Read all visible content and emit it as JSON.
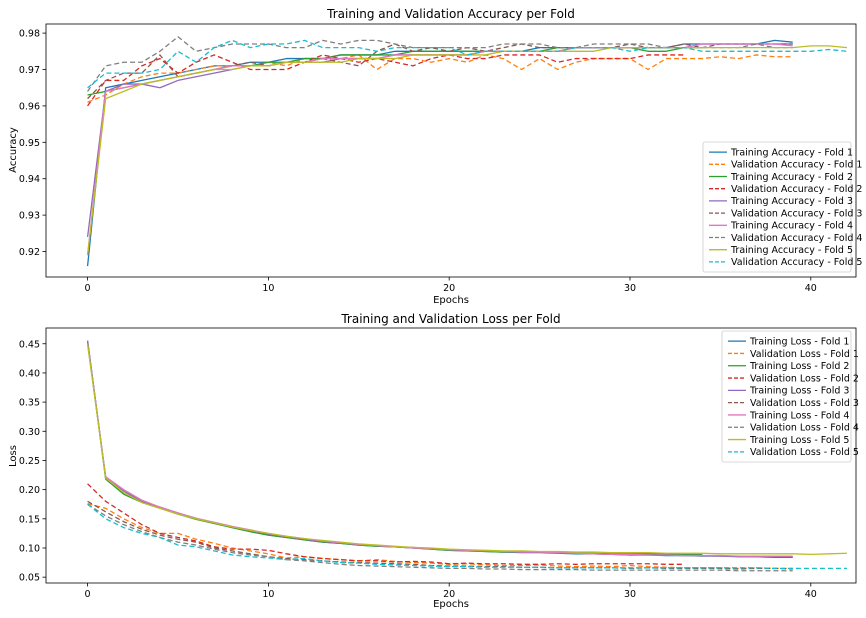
{
  "chart_data": [
    {
      "type": "line",
      "title": "Training and Validation Accuracy per Fold",
      "xlabel": "Epochs",
      "ylabel": "Accuracy",
      "xlim": [
        -2.3,
        42.5
      ],
      "ylim": [
        0.913,
        0.9825
      ],
      "xticks": [
        0,
        10,
        20,
        30,
        40
      ],
      "yticks": [
        0.92,
        0.93,
        0.94,
        0.95,
        0.96,
        0.97,
        0.98
      ],
      "ytick_decimals": 2,
      "grid": false,
      "legend_position": "lower-right",
      "series": [
        {
          "name": "Training Accuracy - Fold 1",
          "color": "#1f77b4",
          "dash": "solid",
          "values": [
            0.916,
            0.965,
            0.966,
            0.967,
            0.968,
            0.969,
            0.97,
            0.971,
            0.971,
            0.972,
            0.972,
            0.973,
            0.973,
            0.973,
            0.974,
            0.974,
            0.974,
            0.975,
            0.975,
            0.975,
            0.975,
            0.975,
            0.975,
            0.975,
            0.975,
            0.976,
            0.976,
            0.976,
            0.976,
            0.976,
            0.976,
            0.976,
            0.976,
            0.977,
            0.977,
            0.977,
            0.977,
            0.977,
            0.978,
            0.9775
          ]
        },
        {
          "name": "Validation Accuracy - Fold 1",
          "color": "#ff7f0e",
          "dash": "dashed",
          "values": [
            0.961,
            0.963,
            0.966,
            0.968,
            0.969,
            0.969,
            0.97,
            0.971,
            0.971,
            0.971,
            0.972,
            0.971,
            0.973,
            0.973,
            0.973,
            0.974,
            0.97,
            0.973,
            0.973,
            0.972,
            0.973,
            0.972,
            0.974,
            0.973,
            0.97,
            0.973,
            0.97,
            0.972,
            0.973,
            0.973,
            0.973,
            0.97,
            0.973,
            0.973,
            0.973,
            0.9735,
            0.973,
            0.974,
            0.9735,
            0.9735
          ]
        },
        {
          "name": "Training Accuracy - Fold 2",
          "color": "#2ca02c",
          "dash": "solid",
          "values": [
            0.963,
            0.964,
            0.965,
            0.966,
            0.967,
            0.968,
            0.969,
            0.97,
            0.971,
            0.971,
            0.972,
            0.972,
            0.973,
            0.973,
            0.974,
            0.974,
            0.974,
            0.974,
            0.975,
            0.975,
            0.975,
            0.975,
            0.975,
            0.975,
            0.975,
            0.975,
            0.976,
            0.976,
            0.976,
            0.976,
            0.976,
            0.975,
            0.975,
            0.976,
            0.976
          ]
        },
        {
          "name": "Validation Accuracy - Fold 2",
          "color": "#d62728",
          "dash": "dashed",
          "values": [
            0.96,
            0.967,
            0.967,
            0.971,
            0.973,
            0.969,
            0.972,
            0.974,
            0.972,
            0.97,
            0.97,
            0.97,
            0.972,
            0.974,
            0.973,
            0.972,
            0.973,
            0.972,
            0.971,
            0.973,
            0.974,
            0.973,
            0.973,
            0.974,
            0.974,
            0.974,
            0.972,
            0.973,
            0.973,
            0.973,
            0.973,
            0.974,
            0.974,
            0.974
          ]
        },
        {
          "name": "Training Accuracy - Fold 3",
          "color": "#9467bd",
          "dash": "solid",
          "values": [
            0.924,
            0.964,
            0.966,
            0.966,
            0.965,
            0.967,
            0.968,
            0.969,
            0.97,
            0.971,
            0.971,
            0.972,
            0.972,
            0.972,
            0.973,
            0.973,
            0.973,
            0.974,
            0.974,
            0.974,
            0.974,
            0.974,
            0.975,
            0.975,
            0.975,
            0.975,
            0.975,
            0.976,
            0.976,
            0.976,
            0.976,
            0.976,
            0.976,
            0.976,
            0.977,
            0.977,
            0.977,
            0.977,
            0.977,
            0.977
          ]
        },
        {
          "name": "Validation Accuracy - Fold 3",
          "color": "#8c564b",
          "dash": "dashed",
          "values": [
            0.962,
            0.967,
            0.969,
            0.969,
            0.974,
            0.968,
            0.969,
            0.97,
            0.971,
            0.972,
            0.971,
            0.972,
            0.972,
            0.973,
            0.972,
            0.971,
            0.975,
            0.977,
            0.975,
            0.976,
            0.975,
            0.976,
            0.975,
            0.976,
            0.977,
            0.976,
            0.976,
            0.976,
            0.976,
            0.976,
            0.977,
            0.976,
            0.976,
            0.977,
            0.976,
            0.977,
            0.977,
            0.977,
            0.977,
            0.977
          ]
        },
        {
          "name": "Training Accuracy - Fold 4",
          "color": "#e377c2",
          "dash": "solid",
          "values": [
            0.919,
            0.964,
            0.965,
            0.966,
            0.967,
            0.968,
            0.969,
            0.97,
            0.971,
            0.971,
            0.971,
            0.972,
            0.972,
            0.973,
            0.973,
            0.973,
            0.973,
            0.974,
            0.974,
            0.974,
            0.974,
            0.974,
            0.975,
            0.975,
            0.975,
            0.975,
            0.975,
            0.976,
            0.976,
            0.976,
            0.976,
            0.976,
            0.976,
            0.976,
            0.977,
            0.977,
            0.977,
            0.977,
            0.977,
            0.9765
          ]
        },
        {
          "name": "Validation Accuracy - Fold 4",
          "color": "#7f7f7f",
          "dash": "dashed",
          "values": [
            0.964,
            0.971,
            0.972,
            0.972,
            0.975,
            0.979,
            0.975,
            0.976,
            0.977,
            0.977,
            0.977,
            0.976,
            0.976,
            0.978,
            0.977,
            0.978,
            0.978,
            0.977,
            0.976,
            0.976,
            0.976,
            0.976,
            0.976,
            0.977,
            0.977,
            0.977,
            0.976,
            0.976,
            0.977,
            0.977,
            0.977,
            0.977,
            0.976,
            0.976,
            0.976,
            0.976,
            0.976,
            0.977,
            0.976,
            0.976
          ]
        },
        {
          "name": "Training Accuracy - Fold 5",
          "color": "#bcbd22",
          "dash": "solid",
          "values": [
            0.919,
            0.962,
            0.964,
            0.966,
            0.967,
            0.968,
            0.969,
            0.97,
            0.97,
            0.971,
            0.971,
            0.972,
            0.972,
            0.972,
            0.972,
            0.973,
            0.973,
            0.973,
            0.974,
            0.974,
            0.974,
            0.974,
            0.974,
            0.975,
            0.975,
            0.975,
            0.975,
            0.975,
            0.975,
            0.976,
            0.976,
            0.976,
            0.976,
            0.976,
            0.976,
            0.976,
            0.976,
            0.976,
            0.976,
            0.976,
            0.9765,
            0.9765,
            0.976
          ]
        },
        {
          "name": "Validation Accuracy - Fold 5",
          "color": "#17becf",
          "dash": "dashed",
          "values": [
            0.965,
            0.969,
            0.969,
            0.969,
            0.97,
            0.975,
            0.972,
            0.976,
            0.978,
            0.976,
            0.977,
            0.977,
            0.978,
            0.976,
            0.976,
            0.976,
            0.975,
            0.976,
            0.976,
            0.976,
            0.976,
            0.974,
            0.975,
            0.975,
            0.975,
            0.975,
            0.975,
            0.976,
            0.976,
            0.976,
            0.975,
            0.976,
            0.976,
            0.976,
            0.975,
            0.975,
            0.975,
            0.975,
            0.975,
            0.975,
            0.975,
            0.9755,
            0.975
          ]
        }
      ]
    },
    {
      "type": "line",
      "title": "Training and Validation Loss per Fold",
      "xlabel": "Epochs",
      "ylabel": "Loss",
      "xlim": [
        -2.3,
        42.5
      ],
      "ylim": [
        0.04,
        0.477
      ],
      "xticks": [
        0,
        10,
        20,
        30,
        40
      ],
      "yticks": [
        0.05,
        0.1,
        0.15,
        0.2,
        0.25,
        0.3,
        0.35,
        0.4,
        0.45
      ],
      "ytick_decimals": 2,
      "grid": false,
      "legend_position": "upper-right",
      "series": [
        {
          "name": "Training Loss - Fold 1",
          "color": "#1f77b4",
          "dash": "solid",
          "values": [
            0.455,
            0.22,
            0.195,
            0.18,
            0.17,
            0.16,
            0.15,
            0.143,
            0.135,
            0.128,
            0.122,
            0.118,
            0.114,
            0.11,
            0.108,
            0.105,
            0.103,
            0.102,
            0.1,
            0.098,
            0.096,
            0.095,
            0.094,
            0.093,
            0.092,
            0.092,
            0.091,
            0.09,
            0.09,
            0.089,
            0.088,
            0.088,
            0.087,
            0.087,
            0.086,
            0.086,
            0.085,
            0.085,
            0.084,
            0.084
          ]
        },
        {
          "name": "Validation Loss - Fold 1",
          "color": "#ff7f0e",
          "dash": "dashed",
          "values": [
            0.176,
            0.168,
            0.15,
            0.135,
            0.125,
            0.125,
            0.115,
            0.108,
            0.1,
            0.095,
            0.09,
            0.083,
            0.085,
            0.082,
            0.08,
            0.078,
            0.08,
            0.077,
            0.075,
            0.074,
            0.072,
            0.073,
            0.071,
            0.07,
            0.07,
            0.071,
            0.069,
            0.068,
            0.069,
            0.068,
            0.07,
            0.068,
            0.067,
            0.066,
            0.066,
            0.066,
            0.065,
            0.066,
            0.065,
            0.065
          ]
        },
        {
          "name": "Training Loss - Fold 2",
          "color": "#2ca02c",
          "dash": "solid",
          "values": [
            0.455,
            0.218,
            0.192,
            0.178,
            0.168,
            0.158,
            0.149,
            0.142,
            0.135,
            0.128,
            0.122,
            0.118,
            0.114,
            0.11,
            0.108,
            0.105,
            0.103,
            0.102,
            0.1,
            0.098,
            0.096,
            0.095,
            0.094,
            0.093,
            0.093,
            0.093,
            0.092,
            0.091,
            0.091,
            0.09,
            0.09,
            0.09,
            0.09,
            0.089,
            0.089
          ]
        },
        {
          "name": "Validation Loss - Fold 2",
          "color": "#d62728",
          "dash": "dashed",
          "values": [
            0.21,
            0.18,
            0.16,
            0.14,
            0.125,
            0.118,
            0.112,
            0.102,
            0.098,
            0.098,
            0.096,
            0.09,
            0.085,
            0.082,
            0.08,
            0.078,
            0.078,
            0.076,
            0.077,
            0.076,
            0.073,
            0.074,
            0.073,
            0.073,
            0.072,
            0.072,
            0.073,
            0.072,
            0.073,
            0.073,
            0.073,
            0.073,
            0.072,
            0.072
          ]
        },
        {
          "name": "Training Loss - Fold 3",
          "color": "#9467bd",
          "dash": "solid",
          "values": [
            0.455,
            0.222,
            0.198,
            0.18,
            0.17,
            0.16,
            0.151,
            0.143,
            0.136,
            0.13,
            0.124,
            0.119,
            0.115,
            0.111,
            0.109,
            0.106,
            0.104,
            0.102,
            0.101,
            0.099,
            0.097,
            0.096,
            0.095,
            0.094,
            0.093,
            0.093,
            0.092,
            0.091,
            0.09,
            0.089,
            0.088,
            0.088,
            0.088,
            0.087,
            0.087,
            0.086,
            0.086,
            0.085,
            0.085,
            0.085
          ]
        },
        {
          "name": "Validation Loss - Fold 3",
          "color": "#8c564b",
          "dash": "dashed",
          "values": [
            0.18,
            0.162,
            0.145,
            0.132,
            0.122,
            0.115,
            0.11,
            0.1,
            0.095,
            0.09,
            0.085,
            0.082,
            0.08,
            0.078,
            0.076,
            0.075,
            0.074,
            0.073,
            0.072,
            0.07,
            0.069,
            0.069,
            0.068,
            0.068,
            0.067,
            0.067,
            0.066,
            0.066,
            0.066,
            0.066,
            0.065,
            0.066,
            0.065,
            0.065,
            0.065,
            0.065,
            0.064,
            0.065,
            0.065,
            0.064
          ]
        },
        {
          "name": "Training Loss - Fold 4",
          "color": "#e377c2",
          "dash": "solid",
          "values": [
            0.45,
            0.222,
            0.2,
            0.182,
            0.17,
            0.16,
            0.151,
            0.144,
            0.137,
            0.131,
            0.125,
            0.12,
            0.116,
            0.112,
            0.109,
            0.106,
            0.104,
            0.102,
            0.1,
            0.099,
            0.097,
            0.096,
            0.095,
            0.094,
            0.093,
            0.093,
            0.092,
            0.091,
            0.09,
            0.089,
            0.089,
            0.088,
            0.088,
            0.087,
            0.087,
            0.087,
            0.086,
            0.086,
            0.086,
            0.086
          ]
        },
        {
          "name": "Validation Loss - Fold 4",
          "color": "#7f7f7f",
          "dash": "dashed",
          "values": [
            0.175,
            0.155,
            0.14,
            0.128,
            0.118,
            0.11,
            0.105,
            0.098,
            0.092,
            0.088,
            0.085,
            0.08,
            0.078,
            0.075,
            0.072,
            0.07,
            0.069,
            0.068,
            0.067,
            0.066,
            0.065,
            0.065,
            0.064,
            0.064,
            0.063,
            0.063,
            0.063,
            0.063,
            0.062,
            0.062,
            0.062,
            0.062,
            0.062,
            0.062,
            0.062,
            0.062,
            0.061,
            0.061,
            0.061,
            0.061
          ]
        },
        {
          "name": "Training Loss - Fold 5",
          "color": "#bcbd22",
          "dash": "solid",
          "values": [
            0.45,
            0.22,
            0.195,
            0.178,
            0.168,
            0.158,
            0.15,
            0.143,
            0.136,
            0.13,
            0.125,
            0.12,
            0.116,
            0.113,
            0.11,
            0.107,
            0.105,
            0.103,
            0.101,
            0.1,
            0.098,
            0.097,
            0.096,
            0.095,
            0.095,
            0.094,
            0.094,
            0.093,
            0.093,
            0.092,
            0.092,
            0.092,
            0.091,
            0.091,
            0.091,
            0.09,
            0.09,
            0.09,
            0.09,
            0.09,
            0.089,
            0.09,
            0.091
          ]
        },
        {
          "name": "Validation Loss - Fold 5",
          "color": "#17becf",
          "dash": "dashed",
          "values": [
            0.175,
            0.15,
            0.135,
            0.125,
            0.118,
            0.105,
            0.102,
            0.095,
            0.088,
            0.085,
            0.083,
            0.08,
            0.082,
            0.078,
            0.075,
            0.074,
            0.072,
            0.071,
            0.07,
            0.069,
            0.068,
            0.068,
            0.067,
            0.067,
            0.067,
            0.067,
            0.066,
            0.066,
            0.066,
            0.066,
            0.066,
            0.066,
            0.066,
            0.066,
            0.066,
            0.066,
            0.066,
            0.066,
            0.065,
            0.065,
            0.065,
            0.065,
            0.065
          ]
        }
      ]
    }
  ]
}
